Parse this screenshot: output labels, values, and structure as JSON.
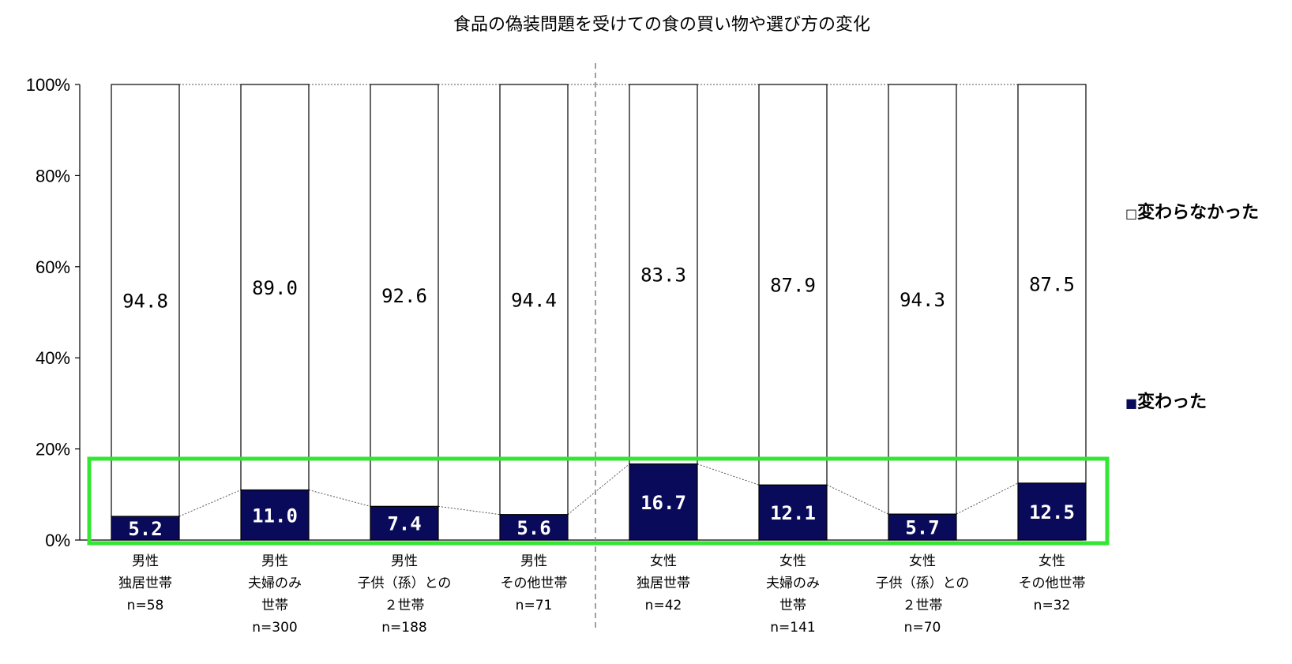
{
  "chart_data": {
    "type": "bar",
    "stacked": true,
    "normalized_100": true,
    "title": "食品の偽装問題を受けての食の買い物や選び方の変化",
    "xlabel": "",
    "ylabel": "",
    "ylim": [
      0,
      100
    ],
    "y_ticks": [
      "0%",
      "20%",
      "40%",
      "60%",
      "80%",
      "100%"
    ],
    "grid": false,
    "legend_position": "right",
    "categories": [
      [
        "男性",
        "独居世帯",
        "n=58"
      ],
      [
        "男性",
        "夫婦のみ",
        "世帯",
        "n=300"
      ],
      [
        "男性",
        "子供（孫）との",
        "２世帯",
        "n=188"
      ],
      [
        "男性",
        "その他世帯",
        "n=71"
      ],
      [
        "女性",
        "独居世帯",
        "n=42"
      ],
      [
        "女性",
        "夫婦のみ",
        "世帯",
        "n=141"
      ],
      [
        "女性",
        "子供（孫）との",
        "２世帯",
        "n=70"
      ],
      [
        "女性",
        "その他世帯",
        "n=32"
      ]
    ],
    "series": [
      {
        "name": "変わった",
        "color": "#0a0a5a",
        "values": [
          5.2,
          11.0,
          7.4,
          5.6,
          16.7,
          12.1,
          5.7,
          12.5
        ],
        "labels": [
          "5.2",
          "11.0",
          "7.4",
          "5.6",
          "16.7",
          "12.1",
          "5.7",
          "12.5"
        ]
      },
      {
        "name": "変わらなかった",
        "color": "#ffffff",
        "values": [
          94.8,
          89.0,
          92.6,
          94.4,
          83.3,
          87.9,
          94.3,
          87.5
        ],
        "labels": [
          "94.8",
          "89.0",
          "92.6",
          "94.4",
          "83.3",
          "87.9",
          "94.3",
          "87.5"
        ]
      }
    ],
    "legend": [
      {
        "marker": "□",
        "label": "変わらなかった"
      },
      {
        "marker": "■",
        "label": "変わった"
      }
    ],
    "annotations": {
      "divider": "dashed vertical line between 男性 and 女性 groups",
      "highlight_box_color": "#33e633"
    }
  }
}
